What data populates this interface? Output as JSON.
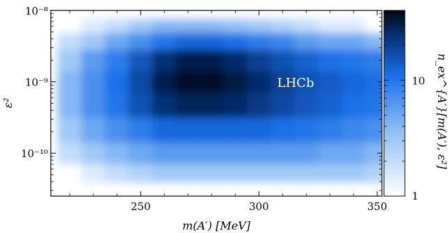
{
  "chart_data": {
    "type": "heatmap",
    "title": "",
    "xlabel": "m(A′) [MeV]",
    "ylabel": "ε²",
    "colorbar_label": "n_ex^{A′}[m(A′), ε²]",
    "annotation": "LHCb",
    "x_range": [
      212,
      352
    ],
    "x_ticks": [
      250,
      300,
      350
    ],
    "x_tick_labels": [
      "250",
      "300",
      "350"
    ],
    "y_scale": "log",
    "y_range": [
      2.5e-11,
      1e-08
    ],
    "y_ticks": [
      1e-10,
      1e-09,
      1e-08
    ],
    "y_tick_labels": [
      "10⁻¹⁰",
      "10⁻⁹",
      "10⁻⁸"
    ],
    "colorbar_scale": "log",
    "colorbar_range": [
      1,
      40
    ],
    "colorbar_ticks": [
      1,
      10
    ],
    "colorbar_tick_labels": [
      "1",
      "10"
    ],
    "colors": {
      "low": "#ffffff",
      "mid": "#1a6fe8",
      "high": "#000814"
    },
    "grid": false,
    "x": [
      220,
      230,
      240,
      250,
      260,
      270,
      280,
      290,
      300,
      310,
      320,
      330,
      340,
      350
    ],
    "y": [
      2e-11,
      3e-11,
      5e-11,
      1e-10,
      2e-10,
      5e-10,
      1e-09,
      2e-09,
      4e-09,
      6e-09,
      1e-08
    ],
    "z": [
      [
        1,
        1,
        1,
        1,
        1,
        1,
        1,
        1,
        1,
        1,
        1,
        1,
        1,
        1
      ],
      [
        1,
        1,
        1,
        1,
        1,
        1,
        1,
        1,
        1,
        1,
        1,
        1,
        1,
        1
      ],
      [
        1,
        1.5,
        2,
        2.5,
        3,
        3,
        3,
        3,
        3,
        3,
        3,
        3,
        3,
        2.5
      ],
      [
        2,
        3,
        4,
        5,
        6,
        6,
        6,
        6,
        6,
        6,
        6,
        5,
        5,
        4
      ],
      [
        3,
        5,
        7,
        9,
        12,
        12,
        12,
        12,
        12,
        11,
        10,
        9,
        8,
        7
      ],
      [
        4,
        7,
        10,
        16,
        24,
        28,
        28,
        26,
        22,
        18,
        15,
        13,
        11,
        10
      ],
      [
        4,
        7,
        11,
        18,
        30,
        36,
        36,
        32,
        26,
        20,
        16,
        14,
        12,
        11
      ],
      [
        3,
        6,
        9,
        15,
        24,
        30,
        30,
        26,
        20,
        16,
        13,
        11,
        10,
        9
      ],
      [
        2,
        3,
        5,
        7,
        10,
        12,
        12,
        11,
        9,
        8,
        6,
        5,
        5,
        4
      ],
      [
        1,
        1.5,
        2,
        3,
        4,
        4,
        4,
        3.5,
        3,
        2.5,
        2,
        1.5,
        1.5,
        1
      ],
      [
        1,
        1,
        1,
        1,
        1,
        1,
        1,
        1,
        1,
        1,
        1,
        1,
        1,
        1
      ]
    ]
  }
}
